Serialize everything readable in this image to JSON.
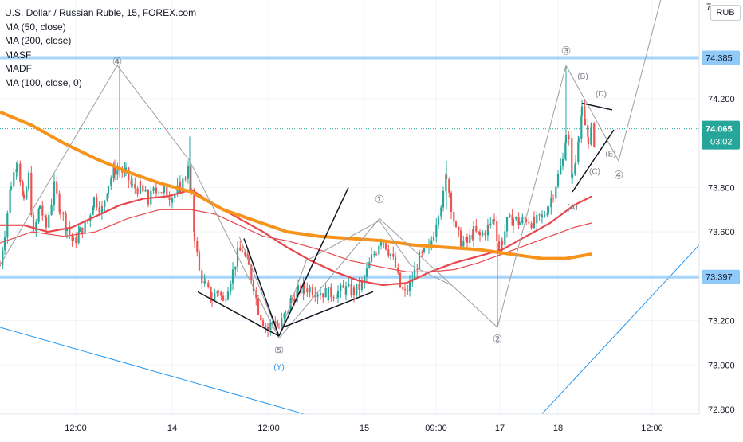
{
  "legend": {
    "title": "U.S. Dollar / Russian Ruble, 15, FOREX.com",
    "indicators": [
      "MA (50, close)",
      "MA (200, close)",
      "MASF",
      "MADF",
      "MA (100, close, 0)"
    ]
  },
  "currency_button": "RUB",
  "colors": {
    "up_candle": "#26a69a",
    "down_candle": "#ef5350",
    "ma50": "#e8474c",
    "ma200": "#f7931a",
    "level_line": "#90caf9",
    "trend_line": "#2196f3",
    "wave_line": "#9e9e9e",
    "current_price": "#26a69a"
  },
  "chart_data": {
    "type": "candlestick",
    "symbol": "USDRUB",
    "interval": "15",
    "x_tick_labels": [
      "12:00",
      "14",
      "12:00",
      "15",
      "09:00",
      "17",
      "18",
      "12:00"
    ],
    "y_tick_labels": [
      "74.200",
      "73.800",
      "73.600",
      "73.200",
      "73.000",
      "72.800"
    ],
    "y_top_partial_label": "7",
    "y_range": [
      72.76,
      74.69
    ],
    "price_levels": [
      {
        "label": "74.385",
        "value": 74.385
      },
      {
        "label": "73.397",
        "value": 73.397
      }
    ],
    "current_price": {
      "price_label": "74.065",
      "countdown": "03:02",
      "value": 74.065
    },
    "candle_anchors": [
      [
        0,
        73.45
      ],
      [
        6,
        73.6
      ],
      [
        14,
        73.82
      ],
      [
        22,
        73.93
      ],
      [
        30,
        73.72
      ],
      [
        36,
        73.85
      ],
      [
        42,
        73.58
      ],
      [
        50,
        73.72
      ],
      [
        58,
        73.62
      ],
      [
        68,
        73.8
      ],
      [
        76,
        73.7
      ],
      [
        84,
        73.62
      ],
      [
        92,
        73.55
      ],
      [
        100,
        73.6
      ],
      [
        110,
        73.65
      ],
      [
        118,
        73.75
      ],
      [
        128,
        73.7
      ],
      [
        136,
        73.82
      ],
      [
        144,
        73.88
      ],
      [
        150,
        73.88
      ],
      [
        158,
        73.86
      ],
      [
        166,
        73.8
      ],
      [
        176,
        73.8
      ],
      [
        186,
        73.74
      ],
      [
        196,
        73.8
      ],
      [
        206,
        73.78
      ],
      [
        216,
        73.76
      ],
      [
        226,
        73.8
      ],
      [
        236,
        73.88
      ],
      [
        240,
        73.75
      ],
      [
        244,
        73.58
      ],
      [
        250,
        73.42
      ],
      [
        258,
        73.35
      ],
      [
        266,
        73.3
      ],
      [
        274,
        73.34
      ],
      [
        280,
        73.28
      ],
      [
        286,
        73.36
      ],
      [
        292,
        73.42
      ],
      [
        298,
        73.5
      ],
      [
        304,
        73.52
      ],
      [
        312,
        73.44
      ],
      [
        318,
        73.36
      ],
      [
        324,
        73.25
      ],
      [
        330,
        73.2
      ],
      [
        336,
        73.16
      ],
      [
        342,
        73.2
      ],
      [
        350,
        73.17
      ],
      [
        358,
        73.23
      ],
      [
        366,
        73.3
      ],
      [
        374,
        73.33
      ],
      [
        382,
        73.35
      ],
      [
        392,
        73.34
      ],
      [
        402,
        73.33
      ],
      [
        412,
        73.32
      ],
      [
        424,
        73.33
      ],
      [
        434,
        73.34
      ],
      [
        444,
        73.33
      ],
      [
        454,
        73.36
      ],
      [
        460,
        73.42
      ],
      [
        466,
        73.48
      ],
      [
        472,
        73.52
      ],
      [
        478,
        73.58
      ],
      [
        484,
        73.54
      ],
      [
        490,
        73.5
      ],
      [
        496,
        73.44
      ],
      [
        502,
        73.35
      ],
      [
        508,
        73.32
      ],
      [
        514,
        73.36
      ],
      [
        520,
        73.42
      ],
      [
        526,
        73.48
      ],
      [
        532,
        73.5
      ],
      [
        538,
        73.52
      ],
      [
        544,
        73.6
      ],
      [
        550,
        73.7
      ],
      [
        556,
        73.76
      ],
      [
        560,
        73.86
      ],
      [
        566,
        73.72
      ],
      [
        572,
        73.6
      ],
      [
        578,
        73.56
      ],
      [
        586,
        73.55
      ],
      [
        594,
        73.6
      ],
      [
        602,
        73.58
      ],
      [
        612,
        73.62
      ],
      [
        620,
        73.66
      ],
      [
        626,
        73.52
      ],
      [
        630,
        73.56
      ],
      [
        636,
        73.64
      ],
      [
        644,
        73.66
      ],
      [
        652,
        73.64
      ],
      [
        660,
        73.66
      ],
      [
        670,
        73.64
      ],
      [
        680,
        73.66
      ],
      [
        688,
        73.72
      ],
      [
        694,
        73.78
      ],
      [
        700,
        73.85
      ],
      [
        706,
        73.92
      ],
      [
        710,
        74.05
      ],
      [
        714,
        74.0
      ],
      [
        718,
        73.84
      ],
      [
        722,
        73.92
      ],
      [
        726,
        74.05
      ],
      [
        730,
        74.14
      ],
      [
        734,
        74.08
      ],
      [
        738,
        74.02
      ],
      [
        742,
        74.06
      ],
      [
        746,
        74.0
      ]
    ],
    "ma50": [
      [
        0,
        73.63
      ],
      [
        30,
        73.63
      ],
      [
        60,
        73.6
      ],
      [
        90,
        73.62
      ],
      [
        120,
        73.67
      ],
      [
        150,
        73.72
      ],
      [
        180,
        73.75
      ],
      [
        210,
        73.76
      ],
      [
        240,
        73.79
      ],
      [
        270,
        73.72
      ],
      [
        300,
        73.66
      ],
      [
        330,
        73.6
      ],
      [
        360,
        73.53
      ],
      [
        390,
        73.47
      ],
      [
        420,
        73.42
      ],
      [
        450,
        73.38
      ],
      [
        480,
        73.36
      ],
      [
        510,
        73.37
      ],
      [
        540,
        73.42
      ],
      [
        570,
        73.46
      ],
      [
        600,
        73.49
      ],
      [
        630,
        73.52
      ],
      [
        660,
        73.58
      ],
      [
        690,
        73.64
      ],
      [
        720,
        73.72
      ],
      [
        742,
        73.76
      ]
    ],
    "ma200": [
      [
        0,
        74.14
      ],
      [
        40,
        74.08
      ],
      [
        80,
        74.0
      ],
      [
        120,
        73.93
      ],
      [
        160,
        73.87
      ],
      [
        200,
        73.82
      ],
      [
        240,
        73.78
      ],
      [
        280,
        73.7
      ],
      [
        320,
        73.65
      ],
      [
        360,
        73.6
      ],
      [
        400,
        73.58
      ],
      [
        440,
        73.57
      ],
      [
        480,
        73.56
      ],
      [
        520,
        73.54
      ],
      [
        560,
        73.53
      ],
      [
        600,
        73.52
      ],
      [
        640,
        73.5
      ],
      [
        680,
        73.48
      ],
      [
        710,
        73.48
      ],
      [
        742,
        73.5
      ]
    ],
    "ma100": [
      [
        0,
        73.55
      ],
      [
        40,
        73.6
      ],
      [
        80,
        73.58
      ],
      [
        120,
        73.6
      ],
      [
        160,
        73.66
      ],
      [
        200,
        73.7
      ],
      [
        240,
        73.7
      ],
      [
        270,
        73.68
      ],
      [
        300,
        73.63
      ],
      [
        330,
        73.58
      ],
      [
        360,
        73.56
      ],
      [
        400,
        73.52
      ],
      [
        440,
        73.47
      ],
      [
        480,
        73.44
      ],
      [
        510,
        73.42
      ],
      [
        540,
        73.42
      ],
      [
        570,
        73.43
      ],
      [
        600,
        73.46
      ],
      [
        630,
        73.5
      ],
      [
        660,
        73.54
      ],
      [
        690,
        73.58
      ],
      [
        720,
        73.62
      ],
      [
        742,
        73.64
      ]
    ],
    "wave_labels": [
      {
        "text": "④",
        "x": 147,
        "y": 74.35
      },
      {
        "text": "⑤",
        "x": 350,
        "y": 73.05
      },
      {
        "text": "(Y)",
        "x": 350,
        "y": 72.98
      },
      {
        "text": "①",
        "x": 476,
        "y": 73.73
      },
      {
        "text": "②",
        "x": 624,
        "y": 73.1
      },
      {
        "text": "③",
        "x": 710,
        "y": 74.4
      },
      {
        "text": "(B)",
        "x": 731,
        "y": 74.29
      },
      {
        "text": "(D)",
        "x": 754,
        "y": 74.21
      },
      {
        "text": "(E)",
        "x": 766,
        "y": 73.94
      },
      {
        "text": "(C)",
        "x": 746,
        "y": 73.86
      },
      {
        "text": "④",
        "x": 776,
        "y": 73.84
      },
      {
        "text": "(A)",
        "x": 718,
        "y": 73.7
      }
    ],
    "wave_path_1": [
      [
        0,
        73.45
      ],
      [
        147,
        74.35
      ],
      [
        238,
        73.92
      ],
      [
        350,
        73.12
      ],
      [
        476,
        73.66
      ],
      [
        624,
        73.17
      ],
      [
        710,
        74.35
      ],
      [
        776,
        73.92
      ],
      [
        832,
        74.69
      ]
    ],
    "wave_path_2": [
      [
        300,
        73.58
      ],
      [
        350,
        73.13
      ],
      [
        384,
        73.47
      ],
      [
        476,
        73.65
      ],
      [
        515,
        73.45
      ],
      [
        566,
        73.36
      ]
    ],
    "black_lines": [
      [
        [
          248,
          73.33
        ],
        [
          350,
          73.13
        ]
      ],
      [
        [
          306,
          73.57
        ],
        [
          350,
          73.13
        ]
      ],
      [
        [
          350,
          73.13
        ],
        [
          437,
          73.8
        ]
      ],
      [
        [
          355,
          73.17
        ],
        [
          468,
          73.33
        ]
      ],
      [
        [
          730,
          74.18
        ],
        [
          768,
          74.15
        ]
      ],
      [
        [
          718,
          73.78
        ],
        [
          770,
          74.06
        ]
      ]
    ],
    "blue_trend_lines": [
      [
        [
          0,
          73.17
        ],
        [
          400,
          72.76
        ]
      ],
      [
        [
          680,
          72.78
        ],
        [
          882,
          73.56
        ]
      ]
    ]
  }
}
